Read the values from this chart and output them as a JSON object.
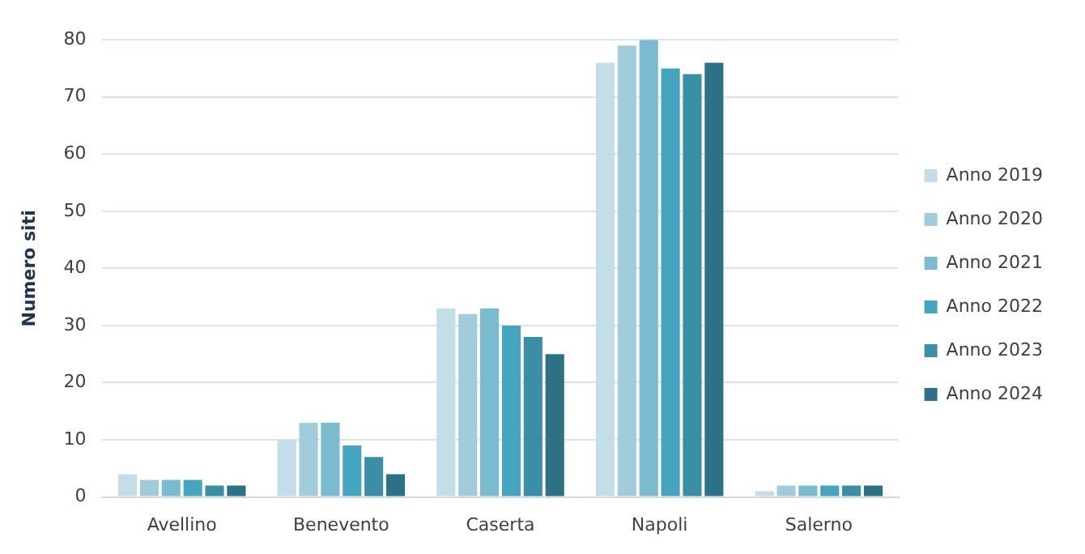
{
  "chart_data": {
    "type": "bar",
    "ylabel": "Numero siti",
    "categories": [
      "Avellino",
      "Benevento",
      "Caserta",
      "Napoli",
      "Salerno"
    ],
    "series": [
      {
        "name": "Anno 2019",
        "color": "#c4dee7",
        "values": [
          4,
          10,
          33,
          76,
          1
        ]
      },
      {
        "name": "Anno 2020",
        "color": "#a2cbdb",
        "values": [
          3,
          13,
          32,
          79,
          2
        ]
      },
      {
        "name": "Anno 2021",
        "color": "#7bbbd0",
        "values": [
          3,
          13,
          33,
          80,
          2
        ]
      },
      {
        "name": "Anno 2022",
        "color": "#45a5c1",
        "values": [
          3,
          9,
          30,
          75,
          2
        ]
      },
      {
        "name": "Anno 2023",
        "color": "#3a8ea6",
        "values": [
          2,
          7,
          28,
          74,
          2
        ]
      },
      {
        "name": "Anno 2024",
        "color": "#2d7186",
        "values": [
          2,
          4,
          25,
          76,
          2
        ]
      }
    ],
    "ylim": [
      0,
      80
    ],
    "yticks": [
      0,
      10,
      20,
      30,
      40,
      50,
      60,
      70,
      80
    ],
    "grid": "y",
    "legend": "right"
  }
}
